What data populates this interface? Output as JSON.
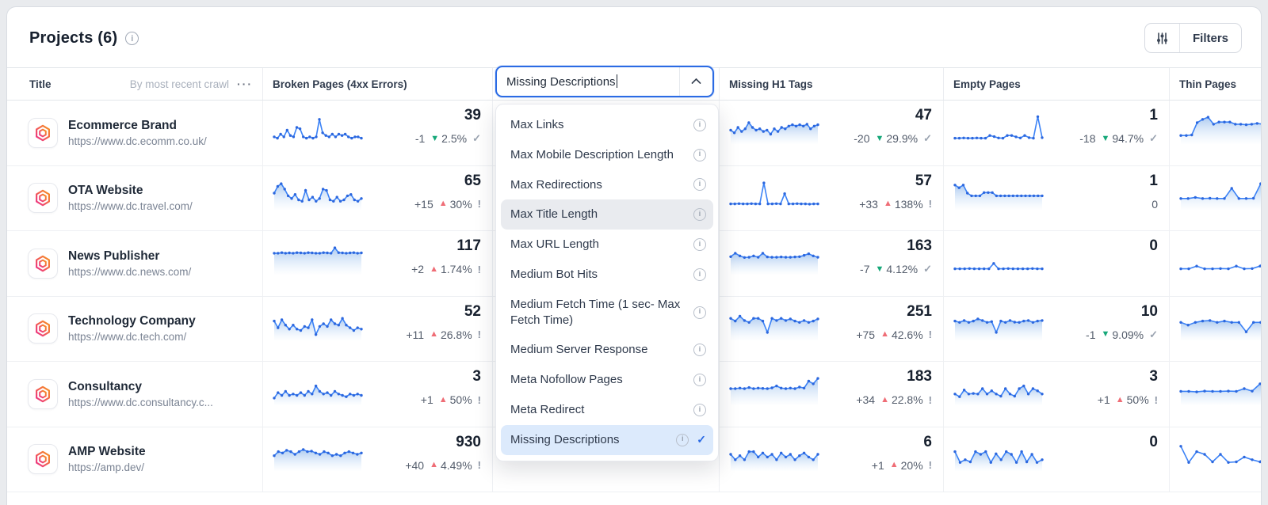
{
  "colors": {
    "accent_blue": "#2b6be4",
    "spark_line": "#3b82f6",
    "spark_dot": "#2c67de",
    "spark_fill_top": "#a9c8ef",
    "up_red": "#ef6d76",
    "down_green": "#16a879",
    "logo_gradient": [
      "#ed2f8c",
      "#f7941d"
    ]
  },
  "header": {
    "title": "Projects (6)",
    "filters_label": "Filters"
  },
  "table": {
    "columns": [
      {
        "label": "Title",
        "sub_label": "By most recent crawl",
        "menu": "···"
      },
      {
        "label": "Broken Pages (4xx Errors)"
      },
      {
        "label": "Missing Descriptions"
      },
      {
        "label": "Missing H1 Tags"
      },
      {
        "label": "Empty Pages"
      },
      {
        "label": "Thin Pages"
      }
    ]
  },
  "dropdown": {
    "value": "Missing Descriptions",
    "items": [
      {
        "label": "Max Links",
        "state": "normal"
      },
      {
        "label": "Max Mobile Description Length",
        "state": "normal"
      },
      {
        "label": "Max Redirections",
        "state": "normal"
      },
      {
        "label": "Max Title Length",
        "state": "hover"
      },
      {
        "label": "Max URL Length",
        "state": "normal"
      },
      {
        "label": "Medium Bot Hits",
        "state": "normal"
      },
      {
        "label": "Medium Fetch Time (1 sec- Max Fetch Time)",
        "state": "normal"
      },
      {
        "label": "Medium Server Response",
        "state": "normal"
      },
      {
        "label": "Meta Nofollow Pages",
        "state": "normal"
      },
      {
        "label": "Meta Redirect",
        "state": "normal"
      },
      {
        "label": "Missing Descriptions",
        "state": "selected"
      }
    ]
  },
  "projects": [
    {
      "title": "Ecommerce Brand",
      "url": "https://www.dc.ecomm.co.uk/",
      "broken_pages": {
        "value": "39",
        "change": "-1",
        "dir": "down",
        "pct": "2.5%",
        "status": "check",
        "spark": {
          "fill": false,
          "pts": [
            1.5,
            1,
            2.5,
            1.5,
            4,
            2,
            1.5,
            5,
            4.5,
            1.5,
            1,
            1.5,
            1,
            1.5,
            8,
            3,
            2,
            1.5,
            2.5,
            1.5,
            2.5,
            2,
            2.5,
            1.5,
            1,
            1.5,
            1.5,
            1
          ]
        }
      },
      "missing_h1": {
        "value": "47",
        "change": "-20",
        "dir": "down",
        "pct": "29.9%",
        "status": "check",
        "spark": {
          "fill": true,
          "pts": [
            4,
            3,
            5,
            3.5,
            4.5,
            6.8,
            5,
            4,
            4.5,
            3.5,
            4,
            2.5,
            4.5,
            3.5,
            5,
            4.5,
            5.5,
            6,
            5.5,
            6,
            5.5,
            6.2,
            4.5,
            5.5,
            6
          ]
        }
      },
      "empty_pages": {
        "value": "1",
        "change": "-18",
        "dir": "down",
        "pct": "94.7%",
        "status": "check",
        "spark": {
          "fill": false,
          "pts": [
            1,
            1,
            1.1,
            1,
            1,
            1.1,
            1,
            1,
            2,
            1.6,
            1.1,
            1,
            2,
            2,
            1.5,
            1.1,
            2,
            1.2,
            1,
            9,
            1.2
          ]
        }
      },
      "thin_pages": {
        "spark": {
          "fill": true,
          "pts": [
            2,
            2,
            2.2,
            6.8,
            8,
            8.8,
            6.2,
            7,
            7,
            7,
            6.2,
            6.2,
            6,
            6.2,
            6.5,
            6.2,
            6.2
          ]
        }
      }
    },
    {
      "title": "OTA Website",
      "url": "https://www.dc.travel.com/",
      "broken_pages": {
        "value": "65",
        "change": "+15",
        "dir": "up",
        "pct": "30%",
        "status": "warn",
        "spark": {
          "fill": true,
          "pts": [
            5,
            7.5,
            8.5,
            6.5,
            4,
            3,
            4.5,
            2.5,
            2,
            6,
            2.5,
            3.5,
            2,
            3,
            6.5,
            6,
            2.5,
            2,
            3.5,
            2,
            2.5,
            4,
            4.5,
            2.5,
            2,
            3
          ]
        }
      },
      "missing_h1": {
        "value": "57",
        "change": "+33",
        "dir": "up",
        "pct": "138%",
        "status": "warn",
        "spark": {
          "fill": false,
          "pts": [
            1,
            1,
            1.1,
            1,
            1,
            1.1,
            1,
            1,
            8.8,
            1,
            1,
            1.1,
            1,
            4.8,
            1,
            1,
            1.1,
            1,
            1,
            0.9,
            1,
            1
          ]
        }
      },
      "empty_pages": {
        "value": "1",
        "change": "0",
        "dir": null,
        "pct": null,
        "status": null,
        "spark": {
          "fill": true,
          "pts": [
            8,
            7,
            8,
            5,
            4,
            4,
            4,
            5.2,
            5.2,
            5.2,
            4,
            4,
            4,
            4,
            4,
            4,
            4,
            4,
            4,
            4,
            4,
            4
          ]
        }
      },
      "thin_pages": {
        "spark": {
          "fill": true,
          "pts": [
            3,
            3,
            3.4,
            3,
            3.1,
            3,
            3,
            6.8,
            3,
            3,
            3.1,
            8.5,
            3.2
          ]
        }
      }
    },
    {
      "title": "News Publisher",
      "url": "https://www.dc.news.com/",
      "broken_pages": {
        "value": "117",
        "change": "+2",
        "dir": "up",
        "pct": "1.74%",
        "status": "warn",
        "spark": {
          "fill": true,
          "pts": [
            6.8,
            6.8,
            7,
            6.8,
            6.9,
            6.8,
            7,
            6.9,
            6.8,
            7,
            6.9,
            6.8,
            6.8,
            7,
            6.9,
            6.8,
            8.8,
            7,
            6.9,
            6.8,
            6.9,
            7,
            6.8,
            6.9
          ]
        }
      },
      "missing_h1": {
        "value": "163",
        "change": "-7",
        "dir": "down",
        "pct": "4.12%",
        "status": "check",
        "spark": {
          "fill": true,
          "pts": [
            5.5,
            6.8,
            5.8,
            5.2,
            5.3,
            5.8,
            5.3,
            6.8,
            5.4,
            5.3,
            5.3,
            5.4,
            5.3,
            5.3,
            5.4,
            5.5,
            6,
            6.6,
            5.8,
            5.3
          ]
        }
      },
      "empty_pages": {
        "value": "0",
        "change": null,
        "dir": null,
        "pct": null,
        "status": null,
        "spark": {
          "fill": false,
          "pts": [
            1,
            1,
            1,
            1.1,
            1,
            1,
            1,
            1,
            3,
            1,
            1,
            1.1,
            1,
            1,
            1,
            1,
            1.1,
            1,
            1
          ]
        }
      },
      "thin_pages": {
        "spark": {
          "fill": false,
          "pts": [
            1,
            1,
            2,
            1,
            1,
            1.1,
            1,
            2,
            1,
            1.1,
            2,
            6
          ]
        }
      }
    },
    {
      "title": "Technology Company",
      "url": "https://www.dc.tech.com/",
      "broken_pages": {
        "value": "52",
        "change": "+11",
        "dir": "up",
        "pct": "26.8%",
        "status": "warn",
        "spark": {
          "fill": true,
          "pts": [
            6,
            3.5,
            6.5,
            4.5,
            3,
            4.5,
            3,
            2.5,
            4,
            3.5,
            6.5,
            1,
            4,
            5,
            4,
            6.5,
            5,
            4.5,
            7,
            4.5,
            3.5,
            2.5,
            3.5,
            3
          ]
        }
      },
      "missing_h1": {
        "value": "251",
        "change": "+75",
        "dir": "up",
        "pct": "42.6%",
        "status": "warn",
        "spark": {
          "fill": true,
          "pts": [
            7,
            6,
            7.8,
            6.2,
            5.5,
            7,
            7,
            6,
            1.8,
            7,
            6.2,
            7,
            6.2,
            6.8,
            6,
            5.5,
            6.2,
            5.5,
            6,
            6.8
          ]
        }
      },
      "empty_pages": {
        "value": "10",
        "change": "-1",
        "dir": "down",
        "pct": "9.09%",
        "status": "check",
        "spark": {
          "fill": true,
          "pts": [
            6,
            5.5,
            6.2,
            5.5,
            6,
            6.8,
            6.2,
            5.5,
            5.8,
            1.8,
            6,
            5.5,
            6.2,
            5.6,
            5.5,
            6,
            6.2,
            5.5,
            6,
            6.2
          ]
        }
      },
      "thin_pages": {
        "spark": {
          "fill": true,
          "pts": [
            5.5,
            4.5,
            5.5,
            6,
            6.2,
            5.5,
            6,
            5.5,
            5.5,
            2,
            5.5,
            5.5,
            5.8
          ]
        }
      }
    },
    {
      "title": "Consultancy",
      "url": "https://www.dc.consultancy.c...",
      "broken_pages": {
        "value": "3",
        "change": "+1",
        "dir": "up",
        "pct": "50%",
        "status": "warn",
        "spark": {
          "fill": true,
          "pts": [
            1.5,
            3.5,
            2.5,
            4,
            2.5,
            3,
            2.5,
            3.5,
            2.5,
            4,
            3,
            6,
            4,
            3,
            3.5,
            2.5,
            4,
            3,
            2.5,
            2,
            3,
            2.5,
            3,
            2.5
          ]
        }
      },
      "missing_h1": {
        "value": "183",
        "change": "+34",
        "dir": "up",
        "pct": "22.8%",
        "status": "warn",
        "spark": {
          "fill": true,
          "pts": [
            5,
            5,
            5.2,
            5,
            5.4,
            5,
            5.2,
            5.1,
            5,
            5.3,
            6,
            5.2,
            5,
            5.2,
            5,
            5.6,
            5.2,
            7.8,
            6.8,
            8.8
          ]
        }
      },
      "empty_pages": {
        "value": "3",
        "change": "+1",
        "dir": "up",
        "pct": "50%",
        "status": "warn",
        "spark": {
          "fill": true,
          "pts": [
            3,
            2,
            4.5,
            3,
            3.2,
            3,
            5,
            3,
            4.2,
            3,
            2.2,
            5,
            3,
            2.2,
            5,
            6,
            3,
            5,
            4.2,
            3
          ]
        }
      },
      "thin_pages": {
        "spark": {
          "fill": true,
          "pts": [
            4,
            4,
            3.8,
            4.1,
            4,
            4,
            4.1,
            4,
            5,
            4.1,
            6.8,
            5
          ]
        }
      }
    },
    {
      "title": "AMP Website",
      "url": "https://amp.dev/",
      "broken_pages": {
        "value": "930",
        "change": "+40",
        "dir": "up",
        "pct": "4.49%",
        "status": "warn",
        "spark": {
          "fill": true,
          "pts": [
            4.5,
            6,
            5.5,
            6.5,
            6,
            5,
            6,
            6.8,
            6,
            6.2,
            5.5,
            5,
            6,
            5.5,
            4.5,
            5,
            4.5,
            5.5,
            6,
            5.5,
            5,
            5.5
          ]
        }
      },
      "missing_h1": {
        "value": "6",
        "change": "+1",
        "dir": "up",
        "pct": "20%",
        "status": "warn",
        "spark": {
          "fill": true,
          "pts": [
            5,
            3,
            4.5,
            3,
            6,
            6,
            4,
            5.5,
            4,
            5,
            3,
            5.5,
            4,
            5,
            3,
            4.5,
            5.5,
            4,
            3,
            5
          ]
        }
      },
      "empty_pages": {
        "value": "0",
        "change": null,
        "dir": null,
        "pct": null,
        "status": null,
        "spark": {
          "fill": true,
          "pts": [
            6,
            2,
            3,
            2.2,
            6,
            5,
            6,
            2,
            5.2,
            3,
            6,
            5,
            2,
            6,
            2.2,
            5,
            2,
            3
          ]
        }
      },
      "thin_pages": {
        "spark": {
          "fill": false,
          "pts": [
            8,
            2,
            6,
            5,
            2.2,
            5,
            2,
            2.2,
            4,
            3,
            2.2,
            6
          ]
        }
      }
    }
  ]
}
